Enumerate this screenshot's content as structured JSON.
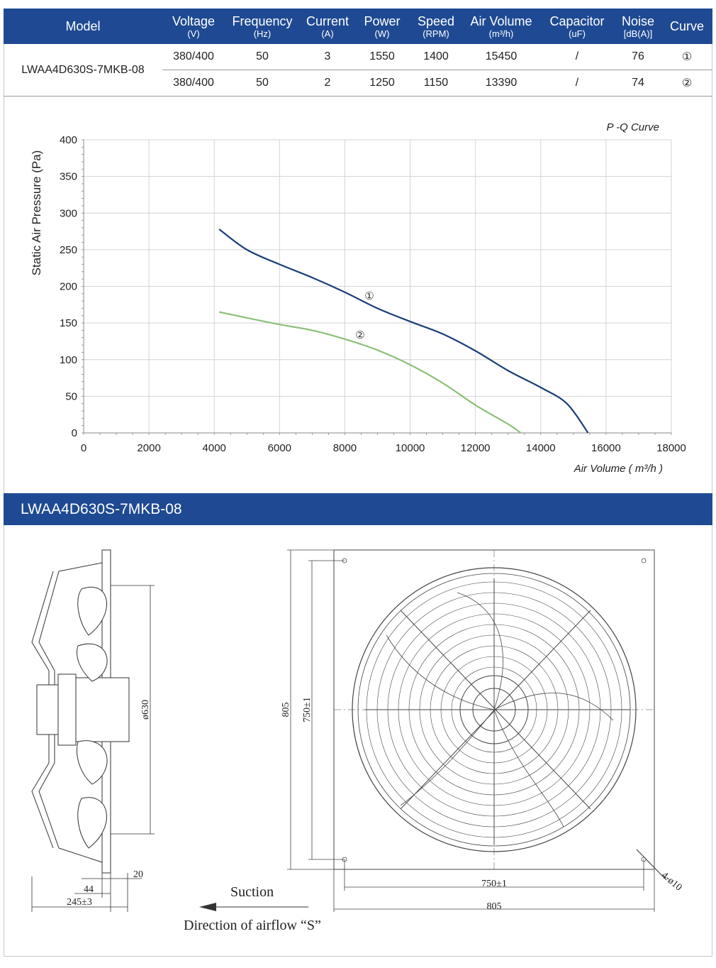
{
  "table": {
    "headers": [
      {
        "name": "Model",
        "unit": ""
      },
      {
        "name": "Voltage",
        "unit": "(V)"
      },
      {
        "name": "Frequency",
        "unit": "(Hz)"
      },
      {
        "name": "Current",
        "unit": "(A)"
      },
      {
        "name": "Power",
        "unit": "(W)"
      },
      {
        "name": "Speed",
        "unit": "(RPM)"
      },
      {
        "name": "Air Volume",
        "unit": "(m³/h)"
      },
      {
        "name": "Capacitor",
        "unit": "(uF)"
      },
      {
        "name": "Noise",
        "unit": "[dB(A)]"
      },
      {
        "name": "Curve",
        "unit": ""
      }
    ],
    "model": "LWAA4D630S-7MKB-08",
    "rows": [
      [
        "380/400",
        "50",
        "3",
        "1550",
        "1400",
        "15450",
        "/",
        "76",
        "①"
      ],
      [
        "380/400",
        "50",
        "2",
        "1250",
        "1150",
        "13390",
        "/",
        "74",
        "②"
      ]
    ]
  },
  "chart_data": {
    "type": "line",
    "title": "P -Q Curve",
    "xlabel": "Air Volume ( m³/h )",
    "ylabel": "Static Air Pressure  (Pa)",
    "xlim": [
      0,
      18000
    ],
    "ylim": [
      0,
      400
    ],
    "xticks": [
      "0",
      "2000",
      "4000",
      "6000",
      "8000",
      "10000",
      "12000",
      "14000",
      "16000",
      "18000"
    ],
    "yticks": [
      "0",
      "50",
      "100",
      "150",
      "200",
      "250",
      "300",
      "350",
      "400"
    ],
    "grid": true,
    "series": [
      {
        "name": "①",
        "color": "#1b3f7a",
        "x": [
          4150,
          5000,
          6000,
          7000,
          8000,
          9000,
          10000,
          11000,
          12000,
          13000,
          14000,
          14800,
          15450
        ],
        "y": [
          278,
          250,
          230,
          212,
          192,
          170,
          152,
          135,
          112,
          85,
          62,
          40,
          0
        ]
      },
      {
        "name": "②",
        "color": "#8cc07a",
        "x": [
          4150,
          5000,
          6000,
          7000,
          8000,
          9000,
          10000,
          11000,
          12000,
          13000,
          13390
        ],
        "y": [
          165,
          157,
          148,
          140,
          128,
          113,
          93,
          68,
          38,
          12,
          0
        ]
      }
    ],
    "annotations": [
      "①",
      "②"
    ]
  },
  "banner": {
    "title": "LWAA4D630S-7MKB-08"
  },
  "drawing": {
    "dim_630": "ø630",
    "dim_20": "20",
    "dim_44": "44",
    "dim_245": "245±3",
    "dim_805_v": "805",
    "dim_750_v": "750±1",
    "dim_750_h": "750±1",
    "dim_805_h": "805",
    "dim_holes": "4-ø10",
    "suction": "Suction",
    "airflow": "Direction of airflow “S”"
  }
}
